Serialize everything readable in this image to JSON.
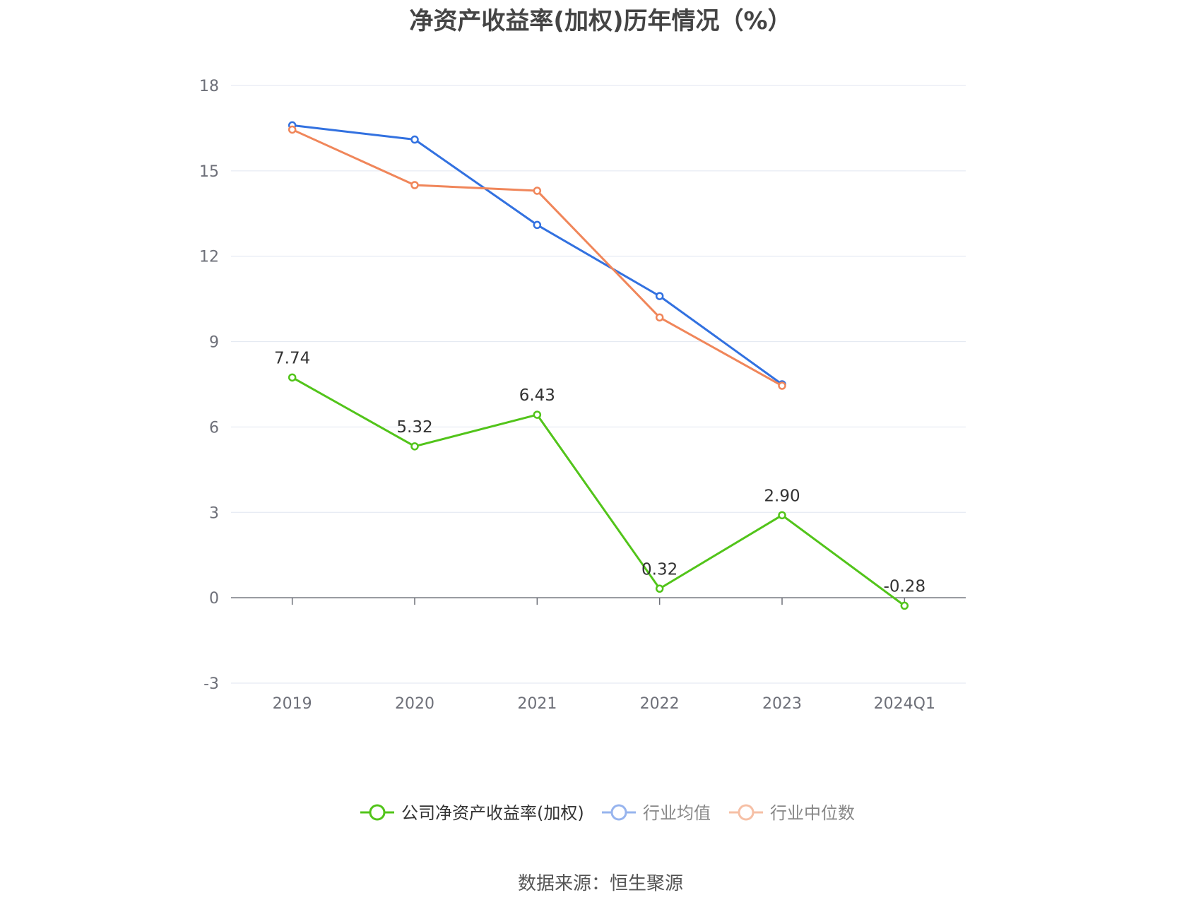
{
  "chart_data": {
    "type": "line",
    "title": "净资产收益率(加权)历年情况（%）",
    "categories": [
      "2019",
      "2020",
      "2021",
      "2022",
      "2023",
      "2024Q1"
    ],
    "ylim": [
      -3,
      18
    ],
    "yticks": [
      -3,
      0,
      3,
      6,
      9,
      12,
      15,
      18
    ],
    "grid": true,
    "legend_position": "bottom-center",
    "series": [
      {
        "name": "公司净资产收益率(加权)",
        "color": "#52c41a",
        "values": [
          7.74,
          5.32,
          6.43,
          0.32,
          2.9,
          -0.28
        ],
        "labels": [
          "7.74",
          "5.32",
          "6.43",
          "0.32",
          "2.90",
          "-0.28"
        ]
      },
      {
        "name": "行业均值",
        "color": "#3271e0",
        "legend_color": "#97b4ee",
        "values": [
          16.6,
          16.1,
          13.1,
          10.6,
          7.5,
          null
        ]
      },
      {
        "name": "行业中位数",
        "color": "#f0865a",
        "legend_color": "#f6c0a6",
        "values": [
          16.45,
          14.5,
          14.3,
          9.85,
          7.45,
          null
        ]
      }
    ],
    "source": "数据来源：恒生聚源"
  }
}
